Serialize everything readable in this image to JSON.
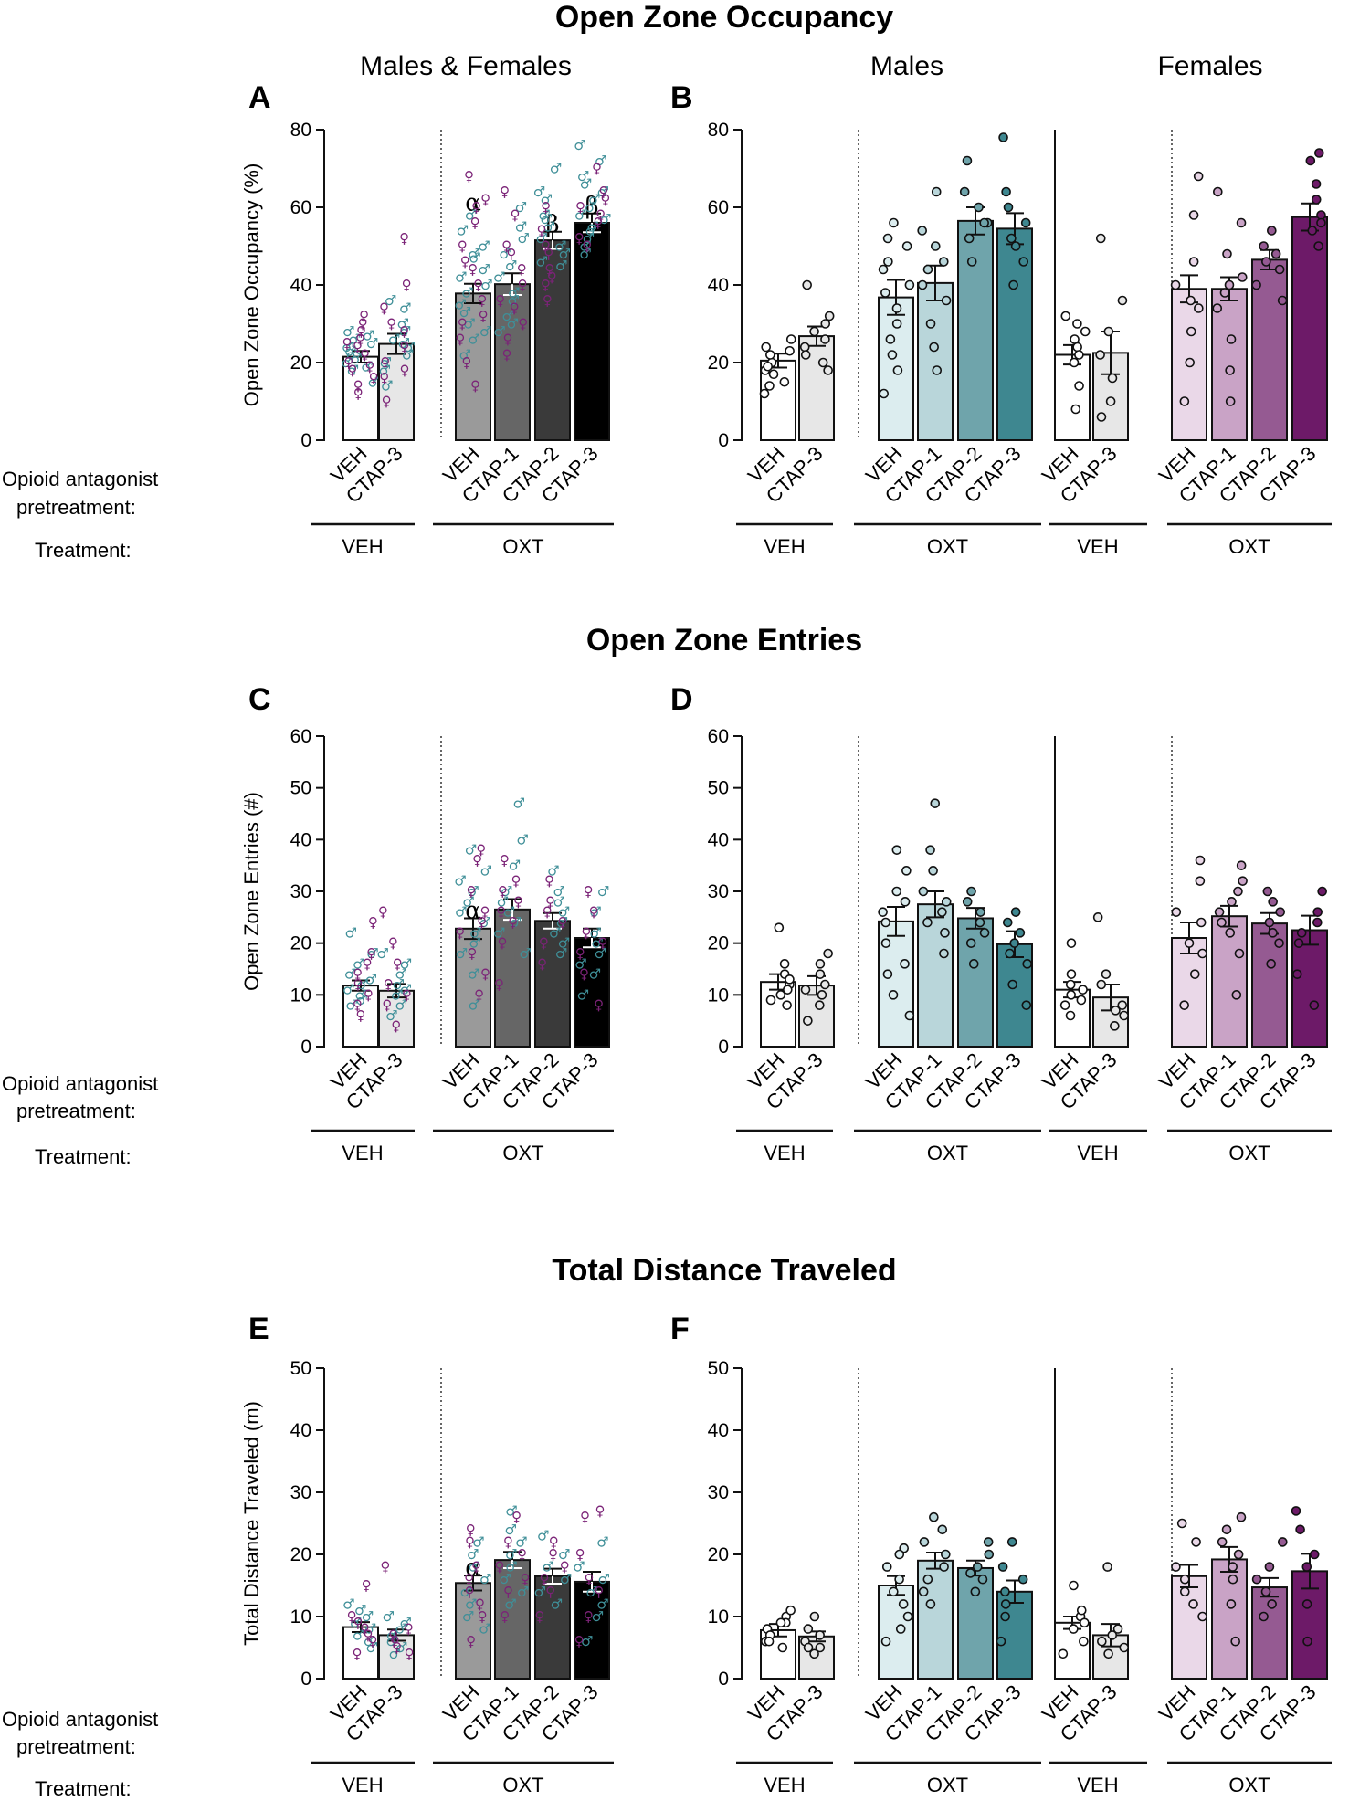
{
  "section_titles": [
    "Open Zone Occupancy",
    "Open Zone Entries",
    "Total Distance Traveled"
  ],
  "panel_titles": {
    "mixed": "Males & Females",
    "males": "Males",
    "females": "Females"
  },
  "row_labels": {
    "pretreatment_line1": "Opioid antagonist",
    "pretreatment_line2": "pretreatment:",
    "treatment": "Treatment:"
  },
  "groups": {
    "veh": "VEH",
    "oxt": "OXT"
  },
  "legend": {
    "male_symbol": "♂",
    "female_symbol": "♀"
  },
  "colors": {
    "male_symbol": "#3f8f98",
    "female_symbol": "#7b2377",
    "mixed_bars": [
      "#ffffff",
      "#e7e7e7",
      "#9a9a9a",
      "#666666",
      "#3a3a3a",
      "#000000"
    ],
    "male_bars": [
      "#ffffff",
      "#e7e7e7",
      "#dcedef",
      "#b9d6da",
      "#6fa4ab",
      "#3e8790"
    ],
    "female_bars": [
      "#ffffff",
      "#e7e7e7",
      "#ead8e8",
      "#c9a3c6",
      "#955a92",
      "#6d1a68"
    ]
  },
  "chart_data": [
    {
      "panel": "A",
      "type": "bar",
      "title": "Males & Females",
      "ylabel": "Open Zone Occupancy (%)",
      "ylim": [
        0,
        80
      ],
      "yticks": [
        0,
        20,
        40,
        60,
        80
      ],
      "categories": [
        "VEH",
        "CTAP-3",
        "VEH",
        "CTAP-1",
        "CTAP-2",
        "CTAP-3"
      ],
      "treatment": [
        "VEH",
        "VEH",
        "OXT",
        "OXT",
        "OXT",
        "OXT"
      ],
      "values": [
        21.5,
        24.8,
        37.8,
        40.2,
        51.5,
        56.0
      ],
      "sem": [
        1.5,
        2.6,
        2.5,
        2.8,
        2.2,
        2.4
      ],
      "significance": [
        "",
        "",
        "α",
        "",
        "β",
        "β"
      ],
      "points_male": [
        [
          20,
          22,
          24,
          26,
          18,
          28,
          15,
          23,
          21,
          25,
          19,
          27
        ],
        [
          22,
          30,
          18,
          26,
          34,
          14,
          28,
          20,
          24,
          36,
          25
        ],
        [
          42,
          47,
          30,
          38,
          26,
          54,
          35,
          44,
          22,
          58,
          40,
          33,
          48,
          28,
          50
        ],
        [
          38,
          45,
          32,
          52,
          28,
          60,
          42,
          36,
          48,
          30,
          55
        ],
        [
          55,
          62,
          48,
          70,
          52,
          58,
          45,
          50,
          64,
          46,
          57
        ],
        [
          60,
          72,
          55,
          64,
          50,
          68,
          58,
          52,
          76,
          62,
          48,
          57,
          66,
          54
        ]
      ],
      "points_female": [
        [
          30,
          26,
          18,
          12,
          22,
          28,
          16,
          24,
          20,
          32,
          25,
          14,
          19
        ],
        [
          52,
          40,
          20,
          16,
          10,
          24,
          34,
          30,
          28,
          18
        ],
        [
          68,
          60,
          50,
          44,
          32,
          20,
          14,
          40,
          36,
          26,
          46,
          56,
          62,
          30
        ],
        [
          64,
          58,
          50,
          36,
          22,
          44,
          30,
          48,
          40,
          26,
          34
        ],
        [
          60,
          50,
          44,
          40,
          48,
          54,
          36,
          42
        ],
        [
          64,
          70,
          58,
          52,
          62,
          50,
          56,
          60
        ]
      ]
    },
    {
      "panel": "B",
      "type": "bar",
      "title": [
        "Males",
        "Females"
      ],
      "ylabel": "",
      "ylim": [
        0,
        80
      ],
      "yticks": [
        0,
        20,
        40,
        60,
        80
      ],
      "categories": [
        "VEH",
        "CTAP-3",
        "VEH",
        "CTAP-1",
        "CTAP-2",
        "CTAP-3",
        "VEH",
        "CTAP-3",
        "VEH",
        "CTAP-1",
        "CTAP-2",
        "CTAP-3"
      ],
      "treatment": [
        "VEH",
        "VEH",
        "OXT",
        "OXT",
        "OXT",
        "OXT",
        "VEH",
        "VEH",
        "OXT",
        "OXT",
        "OXT",
        "OXT"
      ],
      "sex": [
        "male",
        "male",
        "male",
        "male",
        "male",
        "male",
        "female",
        "female",
        "female",
        "female",
        "female",
        "female"
      ],
      "values": [
        20.5,
        26.8,
        36.8,
        40.5,
        56.5,
        54.5,
        22.0,
        22.5,
        39.0,
        39.0,
        46.5,
        57.5
      ],
      "sem": [
        1.8,
        2.5,
        4.5,
        4.5,
        3.5,
        4.0,
        2.5,
        5.5,
        3.5,
        3.0,
        2.5,
        3.5
      ],
      "points": [
        [
          12,
          14,
          18,
          20,
          22,
          24,
          26,
          19,
          17,
          23,
          15
        ],
        [
          18,
          20,
          24,
          28,
          30,
          40,
          26,
          22,
          32
        ],
        [
          12,
          18,
          22,
          26,
          30,
          38,
          44,
          50,
          52,
          56,
          40,
          46,
          34
        ],
        [
          18,
          24,
          30,
          36,
          40,
          46,
          54,
          64,
          44,
          50
        ],
        [
          46,
          52,
          56,
          60,
          64,
          72,
          56
        ],
        [
          40,
          46,
          50,
          56,
          60,
          64,
          78,
          52
        ]
      ],
      "points_female_panel": [
        [
          8,
          14,
          20,
          24,
          28,
          30,
          32,
          22,
          26
        ],
        [
          6,
          10,
          16,
          22,
          28,
          36,
          52
        ],
        [
          10,
          20,
          28,
          34,
          40,
          46,
          58,
          68,
          36
        ],
        [
          10,
          18,
          26,
          34,
          40,
          42,
          48,
          56,
          64,
          38
        ],
        [
          36,
          40,
          46,
          50,
          54,
          44,
          48
        ],
        [
          50,
          54,
          58,
          62,
          66,
          72,
          74,
          56
        ]
      ]
    },
    {
      "panel": "C",
      "type": "bar",
      "title": "",
      "ylabel": "Open Zone Entries (#)",
      "ylim": [
        0,
        60
      ],
      "yticks": [
        0,
        10,
        20,
        30,
        40,
        50,
        60
      ],
      "categories": [
        "VEH",
        "CTAP-3",
        "VEH",
        "CTAP-1",
        "CTAP-2",
        "CTAP-3"
      ],
      "treatment": [
        "VEH",
        "VEH",
        "OXT",
        "OXT",
        "OXT",
        "OXT"
      ],
      "values": [
        11.8,
        10.8,
        22.8,
        26.5,
        24.3,
        21.0
      ],
      "sem": [
        1.0,
        1.3,
        2.0,
        2.0,
        1.5,
        1.8
      ],
      "significance": [
        "",
        "",
        "α",
        "",
        "",
        ""
      ],
      "points_male": [
        [
          8,
          10,
          12,
          14,
          16,
          18,
          22,
          11,
          13,
          9
        ],
        [
          6,
          10,
          12,
          16,
          18,
          8,
          14,
          11
        ],
        [
          8,
          14,
          20,
          26,
          30,
          34,
          38,
          24,
          18,
          28,
          32,
          22
        ],
        [
          18,
          22,
          26,
          30,
          35,
          40,
          47,
          28,
          24
        ],
        [
          18,
          22,
          26,
          28,
          30,
          34,
          24,
          20
        ],
        [
          10,
          14,
          18,
          22,
          26,
          30,
          20,
          16
        ]
      ],
      "points_female": [
        [
          6,
          10,
          14,
          16,
          24,
          12,
          8,
          18
        ],
        [
          4,
          8,
          12,
          16,
          26,
          20,
          10
        ],
        [
          10,
          18,
          24,
          30,
          36,
          38,
          26,
          22,
          14
        ],
        [
          12,
          20,
          26,
          30,
          32,
          36,
          24,
          28
        ],
        [
          16,
          20,
          24,
          28,
          32,
          26
        ],
        [
          8,
          14,
          20,
          26,
          30,
          22,
          18
        ]
      ]
    },
    {
      "panel": "D",
      "type": "bar",
      "title": "",
      "ylabel": "",
      "ylim": [
        0,
        60
      ],
      "yticks": [
        0,
        10,
        20,
        30,
        40,
        50,
        60
      ],
      "categories": [
        "VEH",
        "CTAP-3",
        "VEH",
        "CTAP-1",
        "CTAP-2",
        "CTAP-3",
        "VEH",
        "CTAP-3",
        "VEH",
        "CTAP-1",
        "CTAP-2",
        "CTAP-3"
      ],
      "treatment": [
        "VEH",
        "VEH",
        "OXT",
        "OXT",
        "OXT",
        "OXT",
        "VEH",
        "VEH",
        "OXT",
        "OXT",
        "OXT",
        "OXT"
      ],
      "sex": [
        "male",
        "male",
        "male",
        "male",
        "male",
        "male",
        "female",
        "female",
        "female",
        "female",
        "female",
        "female"
      ],
      "values": [
        12.5,
        11.8,
        24.2,
        27.5,
        24.8,
        19.8,
        11.0,
        9.5,
        21.0,
        25.2,
        23.8,
        22.5
      ],
      "sem": [
        1.5,
        1.8,
        2.8,
        2.5,
        2.0,
        2.5,
        1.5,
        2.5,
        3.0,
        2.0,
        2.0,
        2.8
      ],
      "points": [
        [
          8,
          10,
          12,
          14,
          16,
          23,
          11,
          13,
          9
        ],
        [
          5,
          8,
          12,
          14,
          16,
          18,
          10,
          11
        ],
        [
          6,
          10,
          14,
          20,
          26,
          30,
          34,
          38,
          24,
          28,
          16
        ],
        [
          18,
          22,
          26,
          30,
          34,
          38,
          47,
          28,
          24
        ],
        [
          16,
          20,
          24,
          28,
          30,
          26,
          22
        ],
        [
          8,
          12,
          16,
          20,
          24,
          26,
          18,
          22
        ]
      ],
      "points_female_panel": [
        [
          6,
          8,
          10,
          12,
          14,
          20,
          11,
          9
        ],
        [
          4,
          6,
          8,
          12,
          14,
          25,
          7
        ],
        [
          8,
          14,
          20,
          26,
          32,
          36,
          24,
          18
        ],
        [
          10,
          18,
          22,
          26,
          30,
          35,
          28,
          24,
          32
        ],
        [
          16,
          20,
          24,
          28,
          30,
          22,
          26
        ],
        [
          8,
          14,
          20,
          26,
          30,
          24,
          22
        ]
      ]
    },
    {
      "panel": "E",
      "type": "bar",
      "title": "",
      "ylabel": "Total Distance Traveled (m)",
      "ylim": [
        0,
        50
      ],
      "yticks": [
        0,
        10,
        20,
        30,
        40,
        50
      ],
      "categories": [
        "VEH",
        "CTAP-3",
        "VEH",
        "CTAP-1",
        "CTAP-2",
        "CTAP-3"
      ],
      "treatment": [
        "VEH",
        "VEH",
        "OXT",
        "OXT",
        "OXT",
        "OXT"
      ],
      "values": [
        8.3,
        7.0,
        15.4,
        19.1,
        16.5,
        15.6
      ],
      "sem": [
        0.8,
        0.9,
        1.2,
        1.3,
        1.2,
        1.6
      ],
      "significance": [
        "",
        "",
        "α",
        "",
        "",
        ""
      ],
      "points_male": [
        [
          6,
          8,
          10,
          12,
          7,
          9,
          11,
          5
        ],
        [
          4,
          6,
          8,
          10,
          7,
          5,
          9
        ],
        [
          8,
          12,
          16,
          20,
          14,
          18,
          10,
          22
        ],
        [
          12,
          16,
          20,
          24,
          27,
          18,
          14,
          22
        ],
        [
          12,
          16,
          20,
          23,
          18,
          14
        ],
        [
          6,
          10,
          14,
          18,
          22,
          12,
          16
        ]
      ],
      "points_female": [
        [
          4,
          6,
          8,
          10,
          15,
          7,
          9
        ],
        [
          4,
          6,
          8,
          18,
          7,
          5
        ],
        [
          6,
          10,
          14,
          18,
          22,
          24,
          12,
          16
        ],
        [
          10,
          14,
          18,
          22,
          26,
          20,
          16
        ],
        [
          10,
          14,
          18,
          22,
          16,
          20
        ],
        [
          6,
          10,
          16,
          20,
          27,
          26,
          14
        ]
      ]
    },
    {
      "panel": "F",
      "type": "bar",
      "title": "",
      "ylabel": "",
      "ylim": [
        0,
        50
      ],
      "yticks": [
        0,
        10,
        20,
        30,
        40,
        50
      ],
      "categories": [
        "VEH",
        "CTAP-3",
        "VEH",
        "CTAP-1",
        "CTAP-2",
        "CTAP-3",
        "VEH",
        "CTAP-3",
        "VEH",
        "CTAP-1",
        "CTAP-2",
        "CTAP-3"
      ],
      "treatment": [
        "VEH",
        "VEH",
        "OXT",
        "OXT",
        "OXT",
        "OXT",
        "VEH",
        "VEH",
        "OXT",
        "OXT",
        "OXT",
        "OXT"
      ],
      "sex": [
        "male",
        "male",
        "male",
        "male",
        "male",
        "male",
        "female",
        "female",
        "female",
        "female",
        "female",
        "female"
      ],
      "values": [
        7.8,
        6.8,
        15.0,
        19.0,
        17.8,
        14.0,
        9.0,
        7.0,
        16.5,
        19.2,
        14.7,
        17.3
      ],
      "sem": [
        1.0,
        0.8,
        1.5,
        1.3,
        1.2,
        1.8,
        1.0,
        1.8,
        1.8,
        2.0,
        1.5,
        2.8
      ],
      "points": [
        [
          5,
          6,
          8,
          10,
          11,
          9,
          7,
          6,
          9
        ],
        [
          4,
          5,
          6,
          8,
          10,
          7,
          5
        ],
        [
          6,
          10,
          14,
          18,
          21,
          12,
          16,
          20,
          8
        ],
        [
          12,
          16,
          20,
          22,
          26,
          18,
          14,
          24
        ],
        [
          14,
          16,
          18,
          20,
          22,
          17
        ],
        [
          6,
          10,
          14,
          18,
          22,
          12,
          16
        ]
      ],
      "points_female_panel": [
        [
          4,
          6,
          8,
          10,
          15,
          9,
          11
        ],
        [
          4,
          6,
          8,
          18,
          7,
          5
        ],
        [
          10,
          14,
          18,
          22,
          25,
          12,
          16
        ],
        [
          6,
          12,
          16,
          20,
          24,
          26,
          18,
          22
        ],
        [
          10,
          14,
          16,
          18,
          22,
          12
        ],
        [
          6,
          12,
          18,
          24,
          27,
          20
        ]
      ]
    }
  ]
}
